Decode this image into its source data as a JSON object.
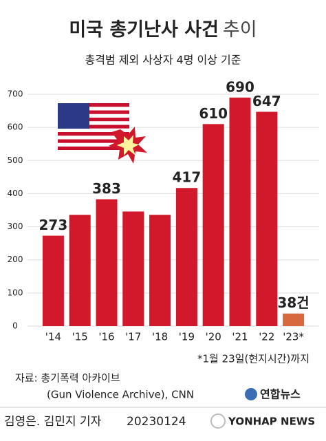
{
  "chart_data": {
    "type": "bar",
    "title": "미국 총기난사 사건",
    "title_suffix": "추이",
    "subtitle": "총격범 제외 사상자 4명 이상 기준",
    "categories": [
      "'14",
      "'15",
      "'16",
      "'17",
      "'18",
      "'19",
      "'20",
      "'21",
      "'22",
      "'23*"
    ],
    "values": [
      273,
      336,
      383,
      346,
      336,
      417,
      610,
      690,
      647,
      38
    ],
    "value_labels": [
      "273",
      null,
      "383",
      null,
      null,
      "417",
      "610",
      "690",
      "647",
      "38건"
    ],
    "colors": [
      "#d2192b",
      "#d2192b",
      "#d2192b",
      "#d2192b",
      "#d2192b",
      "#d2192b",
      "#d2192b",
      "#d2192b",
      "#d2192b",
      "#d8693f"
    ],
    "ylim": [
      0,
      700
    ],
    "yticks": [
      0,
      100,
      200,
      300,
      400,
      500,
      600,
      700
    ],
    "grid": true,
    "footnote": "*1월 23일(현지시간)까지",
    "source": [
      "자료: 총기폭력 아카이브",
      "(Gun Violence Archive), CNN"
    ],
    "logo": "연합뉴스",
    "credit": "김영은. 김민지 기자",
    "date": "20230124",
    "brand": "YONHAP NEWS"
  }
}
